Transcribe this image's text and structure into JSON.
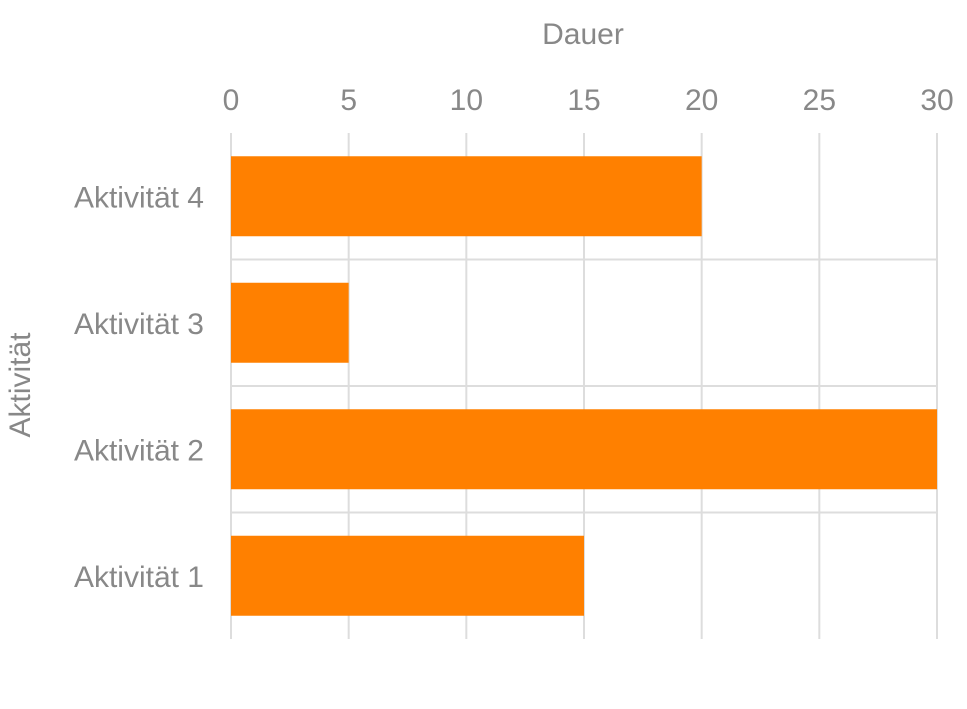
{
  "chart_data": {
    "type": "bar",
    "orientation": "horizontal",
    "categories": [
      "Aktivität 1",
      "Aktivität 2",
      "Aktivität 3",
      "Aktivität 4"
    ],
    "values": [
      15,
      30,
      5,
      20
    ],
    "xlabel": "Dauer",
    "ylabel": "Aktivität",
    "xlim": [
      0,
      30
    ],
    "xticks": [
      "0",
      "5",
      "10",
      "15",
      "20",
      "25",
      "30"
    ],
    "x_axis_position": "top",
    "grid": true,
    "legend": "none"
  },
  "colors": {
    "bar": "#ff8000",
    "grid": "#dddddd",
    "text": "#888888"
  }
}
